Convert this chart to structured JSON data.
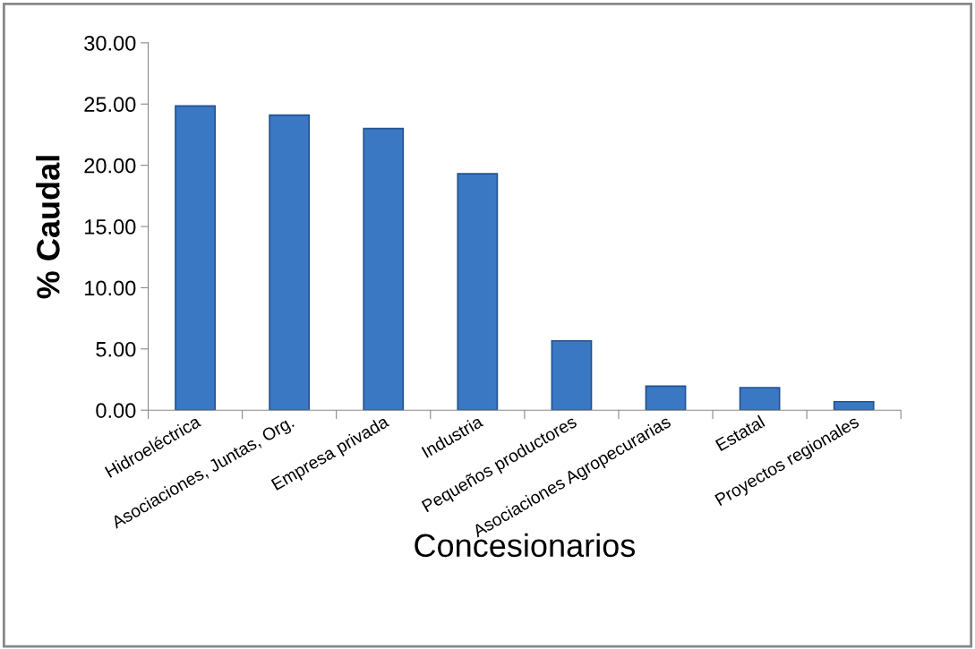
{
  "chart_data": {
    "type": "bar",
    "xlabel": "Concesionarios",
    "ylabel": "% Caudal",
    "categories": [
      "Hidroeléctrica",
      "Asociaciones, Juntas, Org.",
      "Empresa privada",
      "Industria",
      "Pequeños productores",
      "Asociaciones Agropecurarias",
      "Estatal",
      "Proyectos regionales"
    ],
    "values": [
      24.85,
      24.1,
      23.0,
      19.3,
      5.66,
      1.96,
      1.84,
      0.69
    ],
    "color": "#3b78c4",
    "ylim": [
      0,
      30
    ],
    "yticks": [
      {
        "value": 0,
        "label": "0.00"
      },
      {
        "value": 5,
        "label": "5.00"
      },
      {
        "value": 10,
        "label": "10.00"
      },
      {
        "value": 15,
        "label": "15.00"
      },
      {
        "value": 20,
        "label": "20.00"
      },
      {
        "value": 25,
        "label": "25.00"
      },
      {
        "value": 30,
        "label": "30.00"
      }
    ],
    "grid": false
  }
}
